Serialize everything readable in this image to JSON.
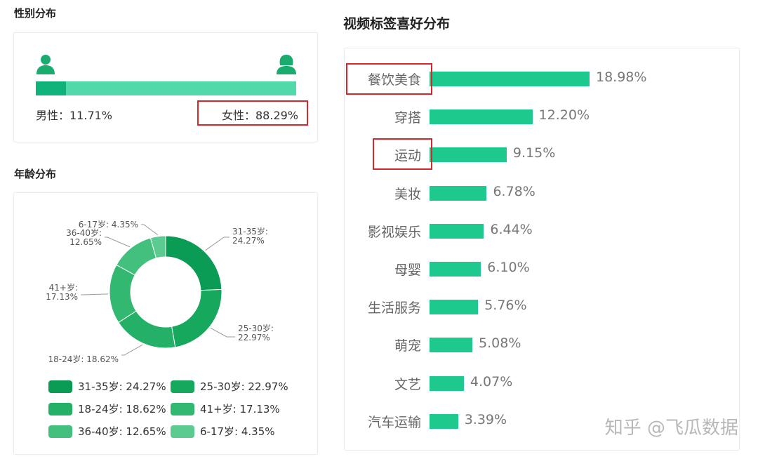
{
  "gender": {
    "title": "性别分布",
    "male_label": "男性：11.71%",
    "female_label": "女性：88.29%",
    "male_share": 11.71,
    "female_share": 88.29,
    "male_color": "#0fb37a",
    "female_color": "#52d9a9",
    "male_icon": "male-user-icon",
    "female_icon": "female-user-icon"
  },
  "age": {
    "title": "年龄分布"
  },
  "tags": {
    "title": "视频标签喜好分布"
  },
  "watermark": "知乎 @飞瓜数据",
  "chart_data": [
    {
      "type": "pie",
      "title": "年龄分布",
      "donut": true,
      "categories": [
        "31-35岁",
        "25-30岁",
        "18-24岁",
        "41+岁",
        "36-40岁",
        "6-17岁"
      ],
      "values": [
        24.27,
        22.97,
        18.62,
        17.13,
        12.65,
        4.35
      ],
      "colors": [
        "#0a9c55",
        "#16a85d",
        "#24b067",
        "#33b872",
        "#43c07e",
        "#5ccb8f"
      ],
      "callouts": [
        "31-35岁:\n24.27%",
        "25-30岁:\n22.97%",
        "18-24岁: 18.62%",
        "41+岁:\n17.13%",
        "36-40岁:\n12.65%",
        "6-17岁: 4.35%"
      ],
      "legend": [
        "31-35岁: 24.27%",
        "25-30岁: 22.97%",
        "18-24岁: 18.62%",
        "41+岁: 17.13%",
        "36-40岁: 12.65%",
        "6-17岁: 4.35%"
      ],
      "legend_position": "bottom"
    },
    {
      "type": "bar",
      "orientation": "horizontal",
      "title": "视频标签喜好分布",
      "categories": [
        "餐饮美食",
        "穿搭",
        "运动",
        "美妆",
        "影视娱乐",
        "母婴",
        "生活服务",
        "萌宠",
        "文艺",
        "汽车运输"
      ],
      "values": [
        18.98,
        12.2,
        9.15,
        6.78,
        6.44,
        6.1,
        5.76,
        5.08,
        4.07,
        3.39
      ],
      "labels": [
        "18.98%",
        "12.20%",
        "9.15%",
        "6.78%",
        "6.44%",
        "6.10%",
        "5.76%",
        "5.08%",
        "4.07%",
        "3.39%"
      ],
      "bar_color": "#1ec98e",
      "highlighted": [
        "餐饮美食",
        "运动"
      ],
      "xlim": [
        0,
        18.98
      ]
    }
  ]
}
